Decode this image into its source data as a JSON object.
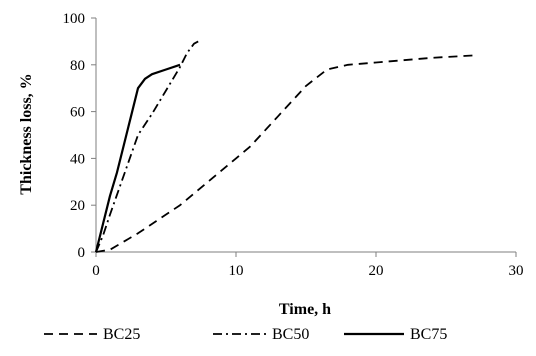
{
  "chart_data": {
    "type": "line",
    "title": "",
    "xlabel": "Time, h",
    "ylabel": "Thickness loss, %",
    "xlim": [
      0,
      30
    ],
    "ylim": [
      0,
      100
    ],
    "x_ticks": [
      0,
      10,
      20,
      30
    ],
    "y_ticks": [
      0,
      20,
      40,
      60,
      80,
      100
    ],
    "grid": false,
    "legend_position": "bottom",
    "series": [
      {
        "name": "BC25",
        "dash": "dashed",
        "color": "#000000",
        "points": [
          [
            0,
            0
          ],
          [
            1,
            1
          ],
          [
            3,
            8
          ],
          [
            6,
            20
          ],
          [
            8,
            30
          ],
          [
            10,
            40
          ],
          [
            11,
            45
          ],
          [
            13,
            58
          ],
          [
            15,
            71
          ],
          [
            16.5,
            78
          ],
          [
            18,
            80
          ],
          [
            20,
            81
          ],
          [
            24,
            83
          ],
          [
            27,
            84
          ]
        ]
      },
      {
        "name": "BC50",
        "dash": "dash-dot",
        "color": "#000000",
        "points": [
          [
            0,
            0
          ],
          [
            0.5,
            7
          ],
          [
            1,
            16
          ],
          [
            2,
            33
          ],
          [
            3,
            50
          ],
          [
            4,
            59
          ],
          [
            5,
            69
          ],
          [
            5.5,
            74
          ],
          [
            6,
            79
          ],
          [
            6.5,
            85
          ],
          [
            7,
            89
          ],
          [
            7.3,
            90
          ]
        ]
      },
      {
        "name": "BC75",
        "dash": "solid",
        "color": "#000000",
        "points": [
          [
            0,
            0
          ],
          [
            0.5,
            12
          ],
          [
            1,
            24
          ],
          [
            1.5,
            34
          ],
          [
            2,
            46
          ],
          [
            2.5,
            58
          ],
          [
            3,
            70
          ],
          [
            3.5,
            74
          ],
          [
            4,
            76
          ],
          [
            5,
            78
          ],
          [
            6,
            80
          ]
        ]
      }
    ]
  }
}
